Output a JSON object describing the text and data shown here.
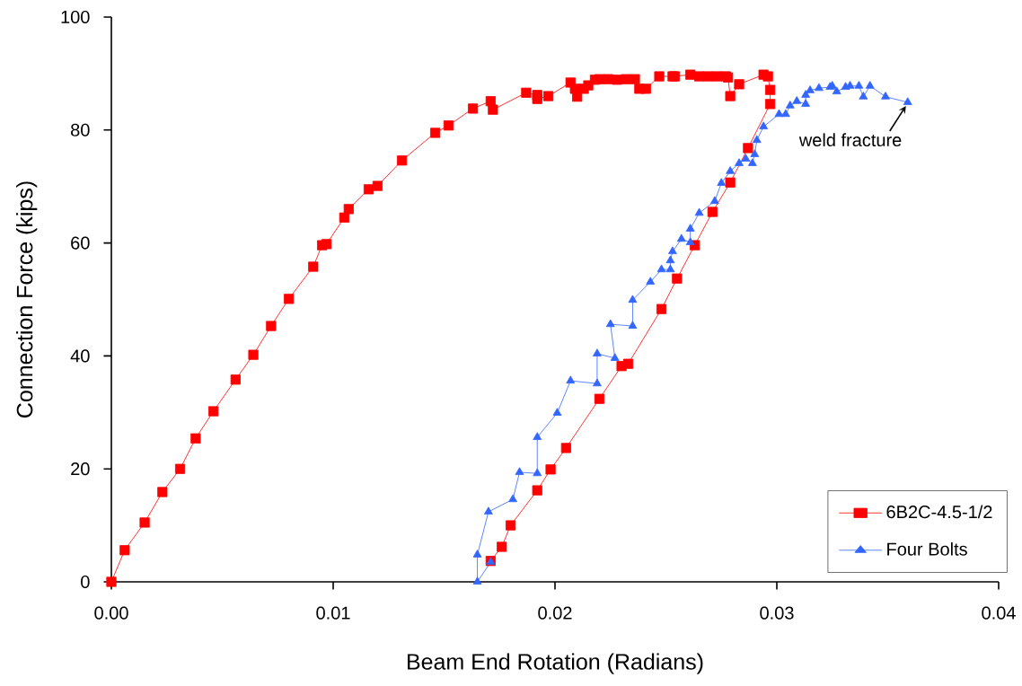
{
  "chart_data": {
    "type": "line",
    "xlabel": "Beam End Rotation (Radians)",
    "ylabel": "Connection Force (kips)",
    "xlim": [
      0,
      0.04
    ],
    "ylim": [
      0,
      100
    ],
    "xticks": [
      {
        "value": 0,
        "label": "0.00"
      },
      {
        "value": 0.01,
        "label": "0.01"
      },
      {
        "value": 0.02,
        "label": "0.02"
      },
      {
        "value": 0.03,
        "label": "0.03"
      },
      {
        "value": 0.04,
        "label": "0.04"
      }
    ],
    "yticks": [
      0,
      20,
      40,
      60,
      80,
      100
    ],
    "legend": "bottom right",
    "line_style": "solid",
    "series": [
      {
        "name": "6B2C-4.5-1/2",
        "color": "#ff0000",
        "marker": "square",
        "x": [
          0,
          0.0006,
          0.0015,
          0.0023,
          0.0031,
          0.0038,
          0.0046,
          0.0056,
          0.0064,
          0.0072,
          0.008,
          0.0091,
          0.0095,
          0.0097,
          0.0105,
          0.0107,
          0.0116,
          0.012,
          0.0131,
          0.0146,
          0.0152,
          0.0163,
          0.0171,
          0.0172,
          0.0187,
          0.0192,
          0.0192,
          0.0197,
          0.0207,
          0.0209,
          0.021,
          0.0213,
          0.0215,
          0.0218,
          0.022,
          0.0224,
          0.0228,
          0.0232,
          0.0236,
          0.0238,
          0.0241,
          0.0247,
          0.0253,
          0.0254,
          0.0261,
          0.0265,
          0.0269,
          0.0273,
          0.0277,
          0.0278,
          0.0279,
          0.0283,
          0.0294,
          0.0296,
          0.0297,
          0.0297,
          0.0287,
          0.0279,
          0.0271,
          0.0263,
          0.0255,
          0.0248,
          0.0233,
          0.023,
          0.022,
          0.0205,
          0.0198,
          0.0192,
          0.018,
          0.0176,
          0.0171
        ],
        "values": [
          0,
          5.6,
          10.5,
          15.9,
          20.0,
          25.4,
          30.2,
          35.8,
          40.2,
          45.3,
          50.1,
          55.8,
          59.6,
          59.8,
          64.5,
          66.0,
          69.5,
          70.1,
          74.6,
          79.5,
          80.8,
          83.8,
          85.1,
          83.6,
          86.6,
          86.2,
          85.5,
          86.0,
          88.4,
          87.3,
          85.9,
          87.3,
          87.9,
          88.9,
          89.0,
          89.0,
          88.9,
          89.0,
          89.0,
          87.3,
          87.3,
          89.5,
          89.5,
          89.5,
          89.8,
          89.5,
          89.5,
          89.5,
          89.5,
          89.3,
          86.0,
          88.1,
          89.8,
          89.5,
          87.1,
          84.6,
          76.8,
          70.7,
          65.5,
          59.6,
          53.7,
          48.3,
          38.6,
          38.2,
          32.4,
          23.7,
          19.9,
          16.2,
          10.0,
          6.2,
          3.7
        ]
      },
      {
        "name": "Four Bolts",
        "color": "#3366ff",
        "marker": "triangle",
        "x": [
          0.0171,
          0.0165,
          0.0165,
          0.017,
          0.0181,
          0.0184,
          0.0192,
          0.0192,
          0.0201,
          0.0207,
          0.0219,
          0.0219,
          0.0227,
          0.0225,
          0.0235,
          0.0235,
          0.0243,
          0.0248,
          0.0252,
          0.0252,
          0.0253,
          0.0257,
          0.0261,
          0.0261,
          0.0265,
          0.0272,
          0.0275,
          0.0279,
          0.0283,
          0.0286,
          0.0289,
          0.029,
          0.0291,
          0.0294,
          0.0301,
          0.0304,
          0.0306,
          0.0309,
          0.0313,
          0.0313,
          0.0315,
          0.0319,
          0.0324,
          0.0325,
          0.0327,
          0.0331,
          0.0333,
          0.0337,
          0.0339,
          0.0342,
          0.0349,
          0.0359
        ],
        "values": [
          3.5,
          0,
          4.8,
          12.4,
          14.6,
          19.4,
          19.2,
          25.6,
          29.9,
          35.6,
          35.1,
          40.4,
          39.6,
          45.6,
          45.3,
          49.9,
          53.1,
          55.3,
          55.3,
          56.9,
          58.5,
          60.7,
          60.1,
          62.5,
          65.3,
          67.4,
          70.6,
          72.7,
          74.1,
          74.9,
          74.1,
          75.7,
          78.2,
          80.6,
          82.8,
          82.8,
          84.3,
          85.1,
          84.6,
          86.2,
          87.0,
          87.4,
          87.6,
          87.8,
          86.8,
          87.6,
          87.8,
          87.8,
          85.9,
          87.8,
          85.9,
          84.9
        ]
      }
    ],
    "annotations": [
      {
        "text": "weld fracture",
        "x": 0.0359,
        "y": 84.9
      }
    ]
  }
}
